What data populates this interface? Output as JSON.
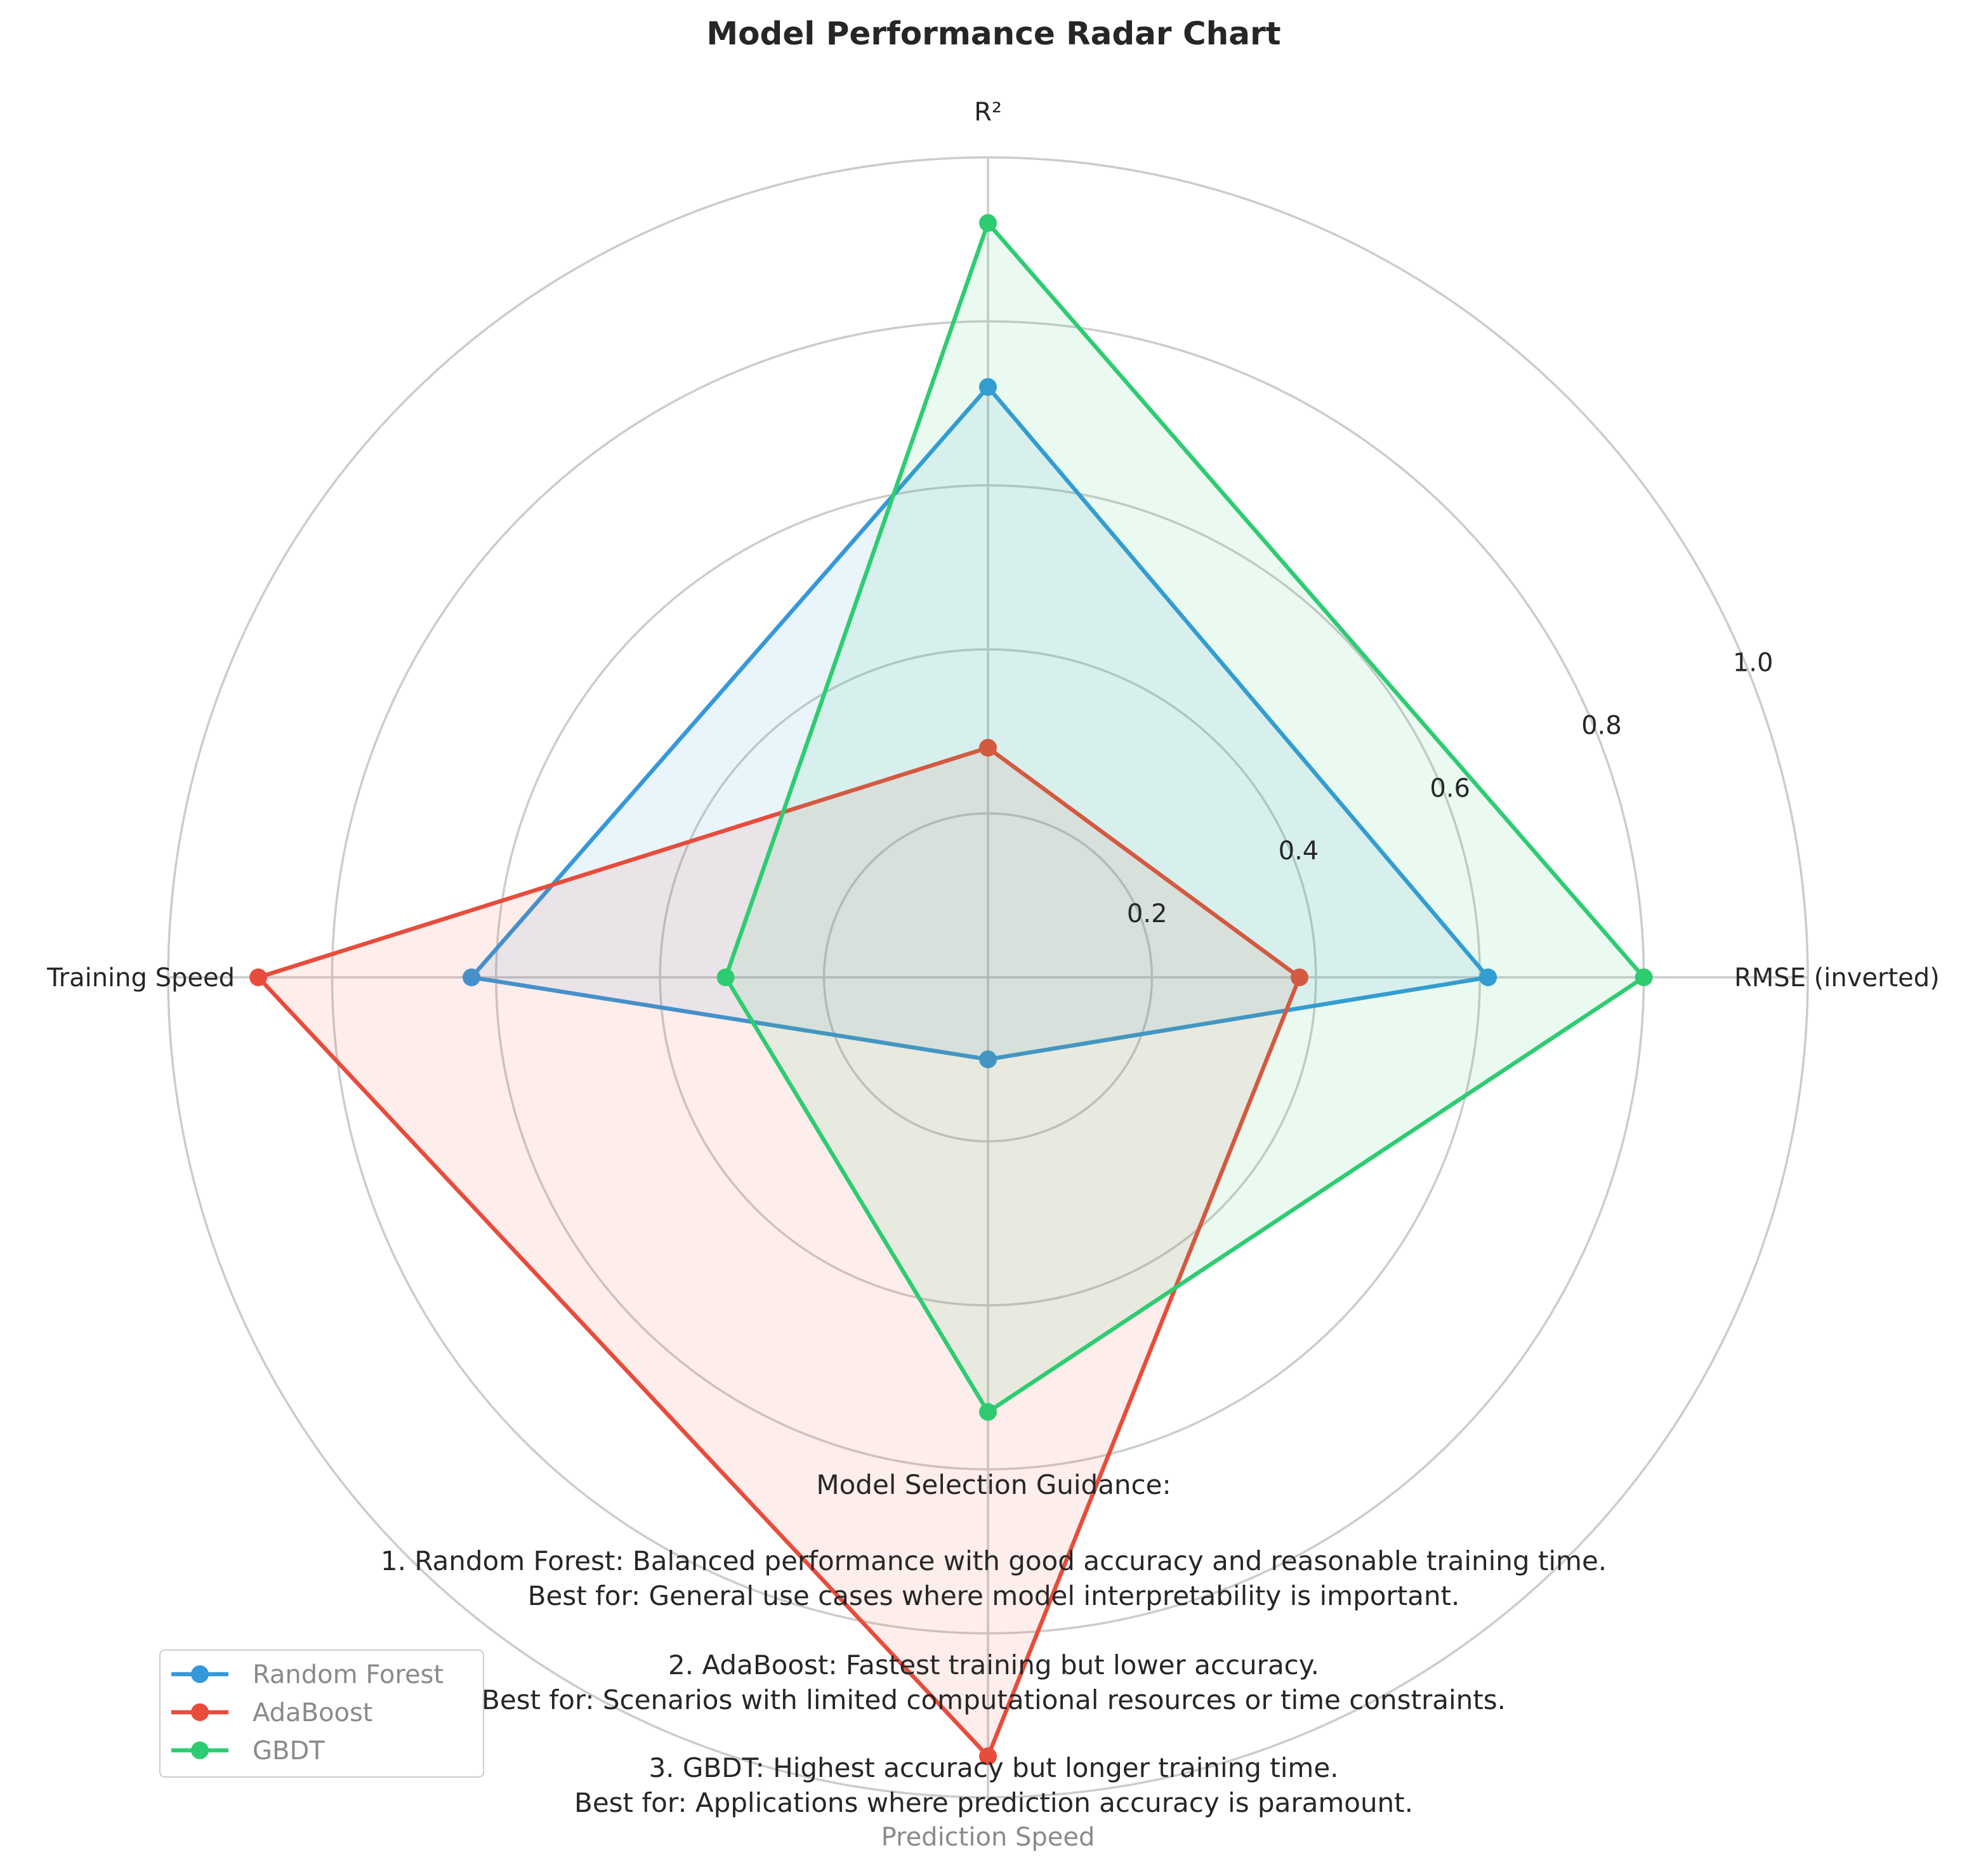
{
  "chart_data": {
    "type": "radar",
    "title": "Model Performance Radar Chart",
    "axes": [
      "R²",
      "RMSE (inverted)",
      "Prediction Speed",
      "Training Speed"
    ],
    "rlim": [
      0,
      1.0
    ],
    "r_ticks": [
      0.2,
      0.4,
      0.6,
      0.8,
      1.0
    ],
    "r_tick_labels": [
      "0.2",
      "0.4",
      "0.6",
      "0.8",
      "1.0"
    ],
    "grid": true,
    "legend_position": "lower-left",
    "series": [
      {
        "name": "Random Forest",
        "color": "#3498db",
        "values": [
          0.72,
          0.61,
          0.1,
          0.63
        ]
      },
      {
        "name": "AdaBoost",
        "color": "#e74c3c",
        "values": [
          0.28,
          0.38,
          0.95,
          0.89
        ]
      },
      {
        "name": "GBDT",
        "color": "#2ecc71",
        "values": [
          0.92,
          0.8,
          0.53,
          0.32
        ]
      }
    ]
  },
  "guidance": {
    "heading": "Model Selection Guidance:",
    "items": [
      {
        "line1": "1. Random Forest: Balanced performance with good accuracy and reasonable training time.",
        "line2": "Best for: General use cases where model interpretability is important."
      },
      {
        "line1": "2. AdaBoost: Fastest training but lower accuracy.",
        "line2": "Best for: Scenarios with limited computational resources or time constraints."
      },
      {
        "line1": "3. GBDT: Highest accuracy but longer training time.",
        "line2": "Best for: Applications where prediction accuracy is paramount."
      }
    ]
  }
}
